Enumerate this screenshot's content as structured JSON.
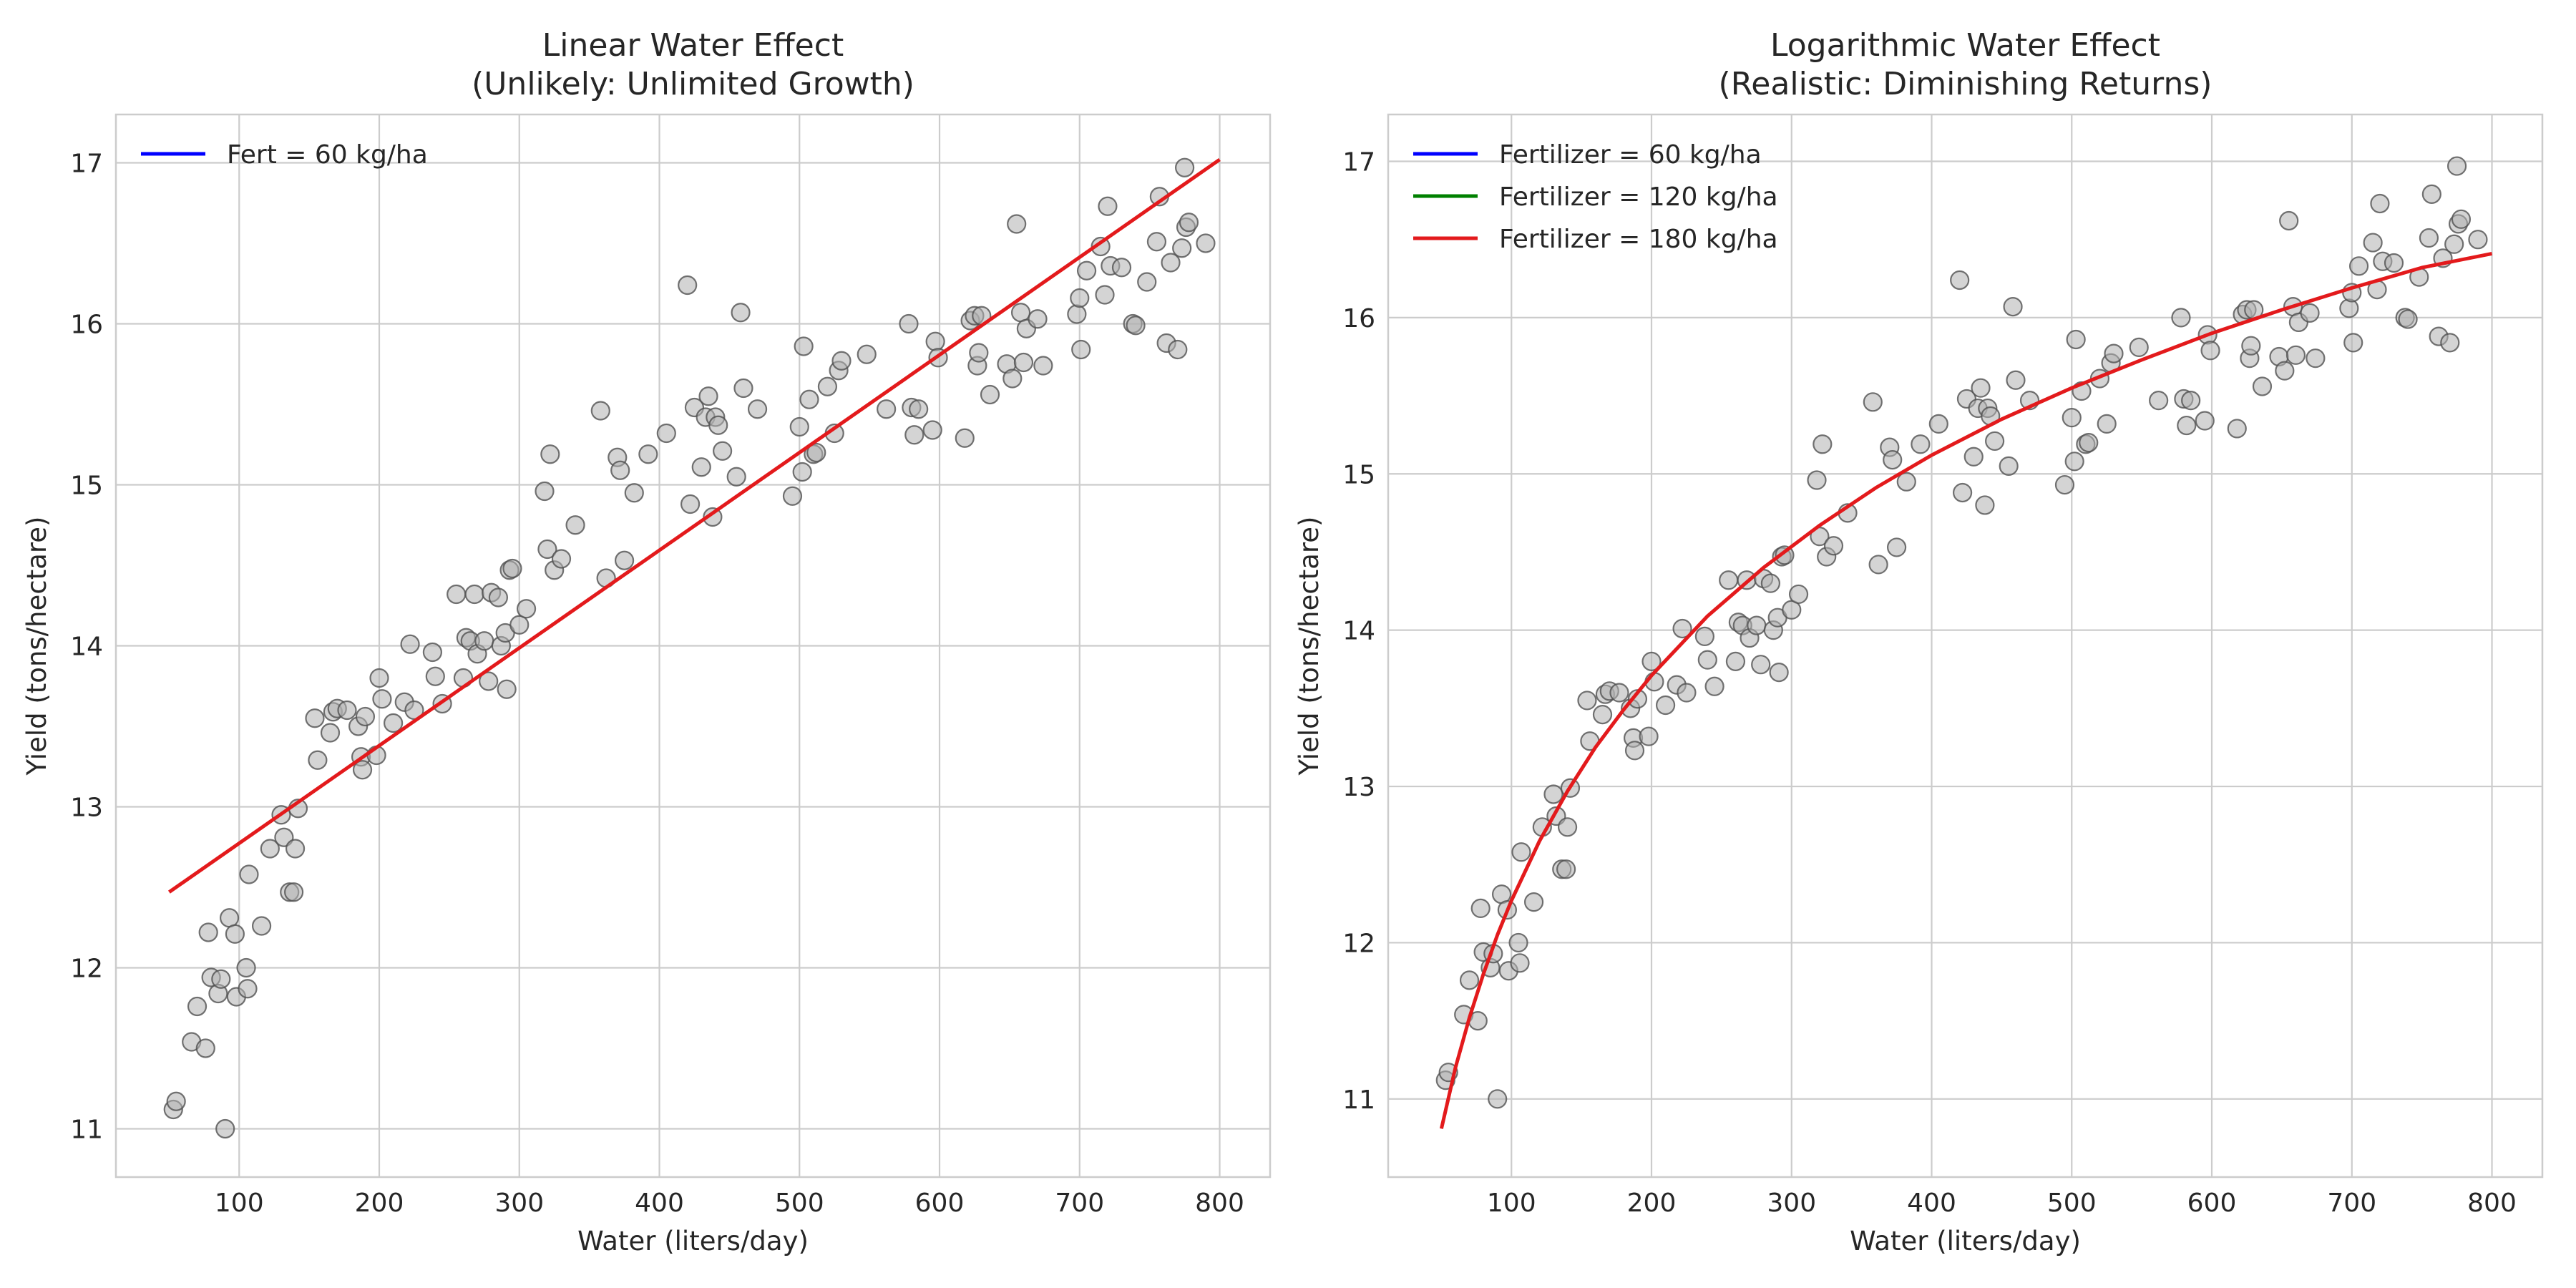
{
  "chart_data": [
    {
      "type": "scatter",
      "title_line1": "Linear Water Effect",
      "title_line2": "(Unlikely: Unlimited Growth)",
      "xlabel": "Water (liters/day)",
      "ylabel": "Yield (tons/hectare)",
      "xlim": [
        12,
        836
      ],
      "ylim": [
        10.7,
        17.3
      ],
      "xticks": [
        100,
        200,
        300,
        400,
        500,
        600,
        700,
        800
      ],
      "yticks": [
        11,
        12,
        13,
        14,
        15,
        16,
        17
      ],
      "grid": true,
      "legend_position": "top-left",
      "series": [
        {
          "name": "Fert = 60 kg/ha",
          "kind": "line",
          "color": "#0000ff",
          "x": [],
          "y": []
        },
        {
          "name": "",
          "kind": "line",
          "color": "#e31a1c",
          "x": [
            50,
            800
          ],
          "y": [
            12.47,
            17.02
          ]
        }
      ]
    },
    {
      "type": "scatter",
      "title_line1": "Logarithmic Water Effect",
      "title_line2": "(Realistic: Diminishing Returns)",
      "xlabel": "Water (liters/day)",
      "ylabel": "Yield (tons/hectare)",
      "xlim": [
        12,
        836
      ],
      "ylim": [
        10.5,
        17.3
      ],
      "xticks": [
        100,
        200,
        300,
        400,
        500,
        600,
        700,
        800
      ],
      "yticks": [
        11,
        12,
        13,
        14,
        15,
        16,
        17
      ],
      "grid": true,
      "legend_position": "top-left",
      "series": [
        {
          "name": "Fertilizer = 60 kg/ha",
          "kind": "line",
          "color": "#0000ff",
          "x": [],
          "y": []
        },
        {
          "name": "Fertilizer = 120 kg/ha",
          "kind": "line",
          "color": "#008000",
          "x": [],
          "y": []
        },
        {
          "name": "Fertilizer = 180 kg/ha",
          "kind": "line",
          "color": "#e31a1c",
          "x": [
            50,
            60,
            70,
            80,
            90,
            100,
            120,
            140,
            160,
            180,
            200,
            240,
            280,
            320,
            360,
            400,
            450,
            500,
            550,
            600,
            650,
            700,
            750,
            800
          ],
          "y": [
            10.81,
            11.2,
            11.52,
            11.8,
            12.05,
            12.27,
            12.65,
            12.97,
            13.25,
            13.49,
            13.71,
            14.09,
            14.4,
            14.67,
            14.91,
            15.12,
            15.35,
            15.55,
            15.73,
            15.9,
            16.05,
            16.19,
            16.32,
            16.41
          ]
        }
      ]
    }
  ],
  "observations": {
    "marker_color": "#b0b0b0",
    "points": [
      [
        53,
        11.12
      ],
      [
        55,
        11.17
      ],
      [
        66,
        11.54
      ],
      [
        70,
        11.76
      ],
      [
        76,
        11.5
      ],
      [
        78,
        12.22
      ],
      [
        80,
        11.94
      ],
      [
        85,
        11.84
      ],
      [
        87,
        11.93
      ],
      [
        90,
        11.0
      ],
      [
        93,
        12.31
      ],
      [
        97,
        12.21
      ],
      [
        98,
        11.82
      ],
      [
        105,
        12.0
      ],
      [
        106,
        11.87
      ],
      [
        107,
        12.58
      ],
      [
        116,
        12.26
      ],
      [
        122,
        12.74
      ],
      [
        130,
        12.95
      ],
      [
        132,
        12.81
      ],
      [
        136,
        12.47
      ],
      [
        139,
        12.47
      ],
      [
        140,
        12.74
      ],
      [
        142,
        12.99
      ],
      [
        154,
        13.55
      ],
      [
        156,
        13.29
      ],
      [
        165,
        13.46
      ],
      [
        167,
        13.59
      ],
      [
        170,
        13.61
      ],
      [
        177,
        13.6
      ],
      [
        185,
        13.5
      ],
      [
        187,
        13.31
      ],
      [
        188,
        13.23
      ],
      [
        190,
        13.56
      ],
      [
        198,
        13.32
      ],
      [
        200,
        13.8
      ],
      [
        202,
        13.67
      ],
      [
        210,
        13.52
      ],
      [
        218,
        13.65
      ],
      [
        222,
        14.01
      ],
      [
        225,
        13.6
      ],
      [
        238,
        13.96
      ],
      [
        240,
        13.81
      ],
      [
        245,
        13.64
      ],
      [
        255,
        14.32
      ],
      [
        260,
        13.8
      ],
      [
        262,
        14.05
      ],
      [
        265,
        14.03
      ],
      [
        268,
        14.32
      ],
      [
        270,
        13.95
      ],
      [
        275,
        14.03
      ],
      [
        278,
        13.78
      ],
      [
        280,
        14.33
      ],
      [
        285,
        14.3
      ],
      [
        287,
        14.0
      ],
      [
        290,
        14.08
      ],
      [
        291,
        13.73
      ],
      [
        293,
        14.47
      ],
      [
        295,
        14.48
      ],
      [
        300,
        14.13
      ],
      [
        305,
        14.23
      ],
      [
        318,
        14.96
      ],
      [
        320,
        14.6
      ],
      [
        322,
        15.19
      ],
      [
        325,
        14.47
      ],
      [
        330,
        14.54
      ],
      [
        340,
        14.75
      ],
      [
        358,
        15.46
      ],
      [
        362,
        14.42
      ],
      [
        370,
        15.17
      ],
      [
        372,
        15.09
      ],
      [
        375,
        14.53
      ],
      [
        382,
        14.95
      ],
      [
        392,
        15.19
      ],
      [
        405,
        15.32
      ],
      [
        420,
        16.24
      ],
      [
        422,
        14.88
      ],
      [
        425,
        15.48
      ],
      [
        430,
        15.11
      ],
      [
        433,
        15.42
      ],
      [
        435,
        15.55
      ],
      [
        438,
        14.8
      ],
      [
        440,
        15.42
      ],
      [
        442,
        15.37
      ],
      [
        445,
        15.21
      ],
      [
        455,
        15.05
      ],
      [
        458,
        16.07
      ],
      [
        460,
        15.6
      ],
      [
        470,
        15.47
      ],
      [
        495,
        14.93
      ],
      [
        500,
        15.36
      ],
      [
        502,
        15.08
      ],
      [
        503,
        15.86
      ],
      [
        507,
        15.53
      ],
      [
        510,
        15.19
      ],
      [
        512,
        15.2
      ],
      [
        520,
        15.61
      ],
      [
        525,
        15.32
      ],
      [
        528,
        15.71
      ],
      [
        530,
        15.77
      ],
      [
        548,
        15.81
      ],
      [
        562,
        15.47
      ],
      [
        578,
        16.0
      ],
      [
        580,
        15.48
      ],
      [
        582,
        15.31
      ],
      [
        585,
        15.47
      ],
      [
        595,
        15.34
      ],
      [
        597,
        15.89
      ],
      [
        599,
        15.79
      ],
      [
        618,
        15.29
      ],
      [
        622,
        16.02
      ],
      [
        625,
        16.05
      ],
      [
        627,
        15.74
      ],
      [
        628,
        15.82
      ],
      [
        630,
        16.05
      ],
      [
        636,
        15.56
      ],
      [
        648,
        15.75
      ],
      [
        652,
        15.66
      ],
      [
        655,
        16.62
      ],
      [
        658,
        16.07
      ],
      [
        660,
        15.76
      ],
      [
        662,
        15.97
      ],
      [
        670,
        16.03
      ],
      [
        674,
        15.74
      ],
      [
        698,
        16.06
      ],
      [
        700,
        16.16
      ],
      [
        701,
        15.84
      ],
      [
        705,
        16.33
      ],
      [
        715,
        16.48
      ],
      [
        718,
        16.18
      ],
      [
        720,
        16.73
      ],
      [
        722,
        16.36
      ],
      [
        730,
        16.35
      ],
      [
        738,
        16.0
      ],
      [
        740,
        15.99
      ],
      [
        748,
        16.26
      ],
      [
        755,
        16.51
      ],
      [
        757,
        16.79
      ],
      [
        762,
        15.88
      ],
      [
        765,
        16.38
      ],
      [
        770,
        15.84
      ],
      [
        773,
        16.47
      ],
      [
        775,
        16.97
      ],
      [
        776,
        16.6
      ],
      [
        778,
        16.63
      ],
      [
        790,
        16.5
      ]
    ]
  }
}
